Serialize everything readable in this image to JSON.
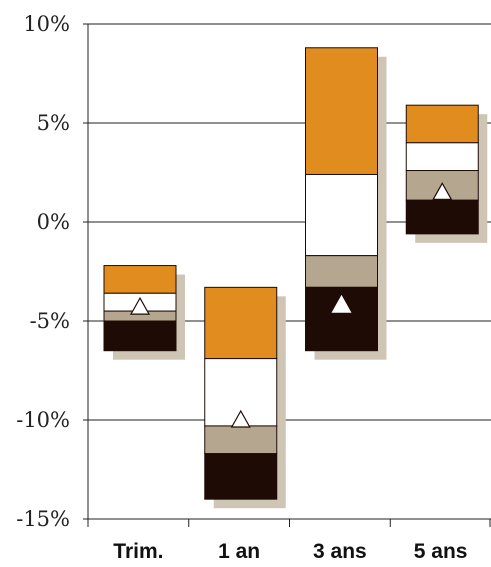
{
  "chart_data": {
    "type": "floating-stacked-bar",
    "title": "",
    "xlabel": "",
    "ylabel": "",
    "categories": [
      "Trim.",
      "1 an",
      "3 ans",
      "5 ans"
    ],
    "ylim": [
      -15,
      10
    ],
    "yticks": [
      10,
      5,
      0,
      -5,
      -10,
      -15
    ],
    "ytick_labels": [
      "10%",
      "5%",
      "0%",
      "-5%",
      "-10%",
      "-15%"
    ],
    "grid": true,
    "legend": "none",
    "bands": [
      {
        "color": "#e08c1e",
        "values": [
          [
            -3.6,
            -2.2
          ],
          [
            -6.9,
            -3.3
          ],
          [
            2.4,
            8.8
          ],
          [
            4.0,
            5.9
          ]
        ]
      },
      {
        "color": "#ffffff",
        "values": [
          [
            -4.5,
            -3.6
          ],
          [
            -10.3,
            -6.9
          ],
          [
            -1.7,
            2.4
          ],
          [
            2.6,
            4.0
          ]
        ]
      },
      {
        "color": "#b5a68f",
        "values": [
          [
            -5.0,
            -4.5
          ],
          [
            -11.7,
            -10.3
          ],
          [
            -3.3,
            -1.7
          ],
          [
            1.1,
            2.6
          ]
        ]
      },
      {
        "color": "#1e0b06",
        "values": [
          [
            -6.5,
            -5.0
          ],
          [
            -14.0,
            -11.7
          ],
          [
            -6.5,
            -3.3
          ],
          [
            -0.6,
            1.1
          ]
        ]
      }
    ],
    "markers": [
      -4.3,
      -10.0,
      -4.2,
      1.5
    ],
    "shadow_color": "#cfc5b4"
  }
}
